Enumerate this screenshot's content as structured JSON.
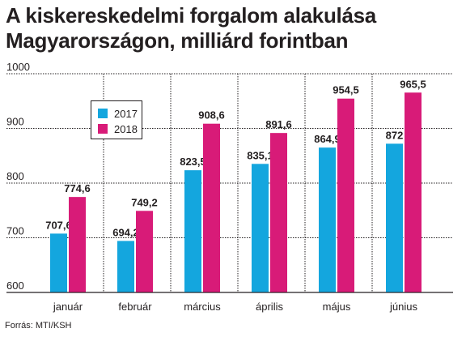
{
  "header": {
    "title_line1": "A kiskereskedelmi forgalom alakulása",
    "title_line2": "Magyarországon, milliárd forintban"
  },
  "source": "Forrás: MTI/KSH",
  "colors": {
    "y2017": "#14a6de",
    "y2018": "#d81b78",
    "text": "#231f20",
    "grid": "#231f20"
  },
  "chart_data": {
    "type": "bar",
    "title": "A kiskereskedelmi forgalom alakulása Magyarországon, milliárd forintban",
    "categories": [
      "január",
      "február",
      "március",
      "április",
      "május",
      "június"
    ],
    "series": [
      {
        "name": "2017",
        "values": [
          707.6,
          694.2,
          823.5,
          835.1,
          864.9,
          872
        ],
        "labels": [
          "707,6",
          "694,2",
          "823,5",
          "835,1",
          "864,9",
          "872"
        ]
      },
      {
        "name": "2018",
        "values": [
          774.6,
          749.2,
          908.6,
          891.6,
          954.5,
          965.5
        ],
        "labels": [
          "774,6",
          "749,2",
          "908,6",
          "891,6",
          "954,5",
          "965,5"
        ]
      }
    ],
    "ylim": [
      600,
      1000
    ],
    "yticks": [
      600,
      700,
      800,
      900,
      1000
    ],
    "ytick_labels": [
      "600",
      "700",
      "800",
      "900",
      "1000"
    ],
    "grid": true,
    "legend_position": "top-left"
  }
}
